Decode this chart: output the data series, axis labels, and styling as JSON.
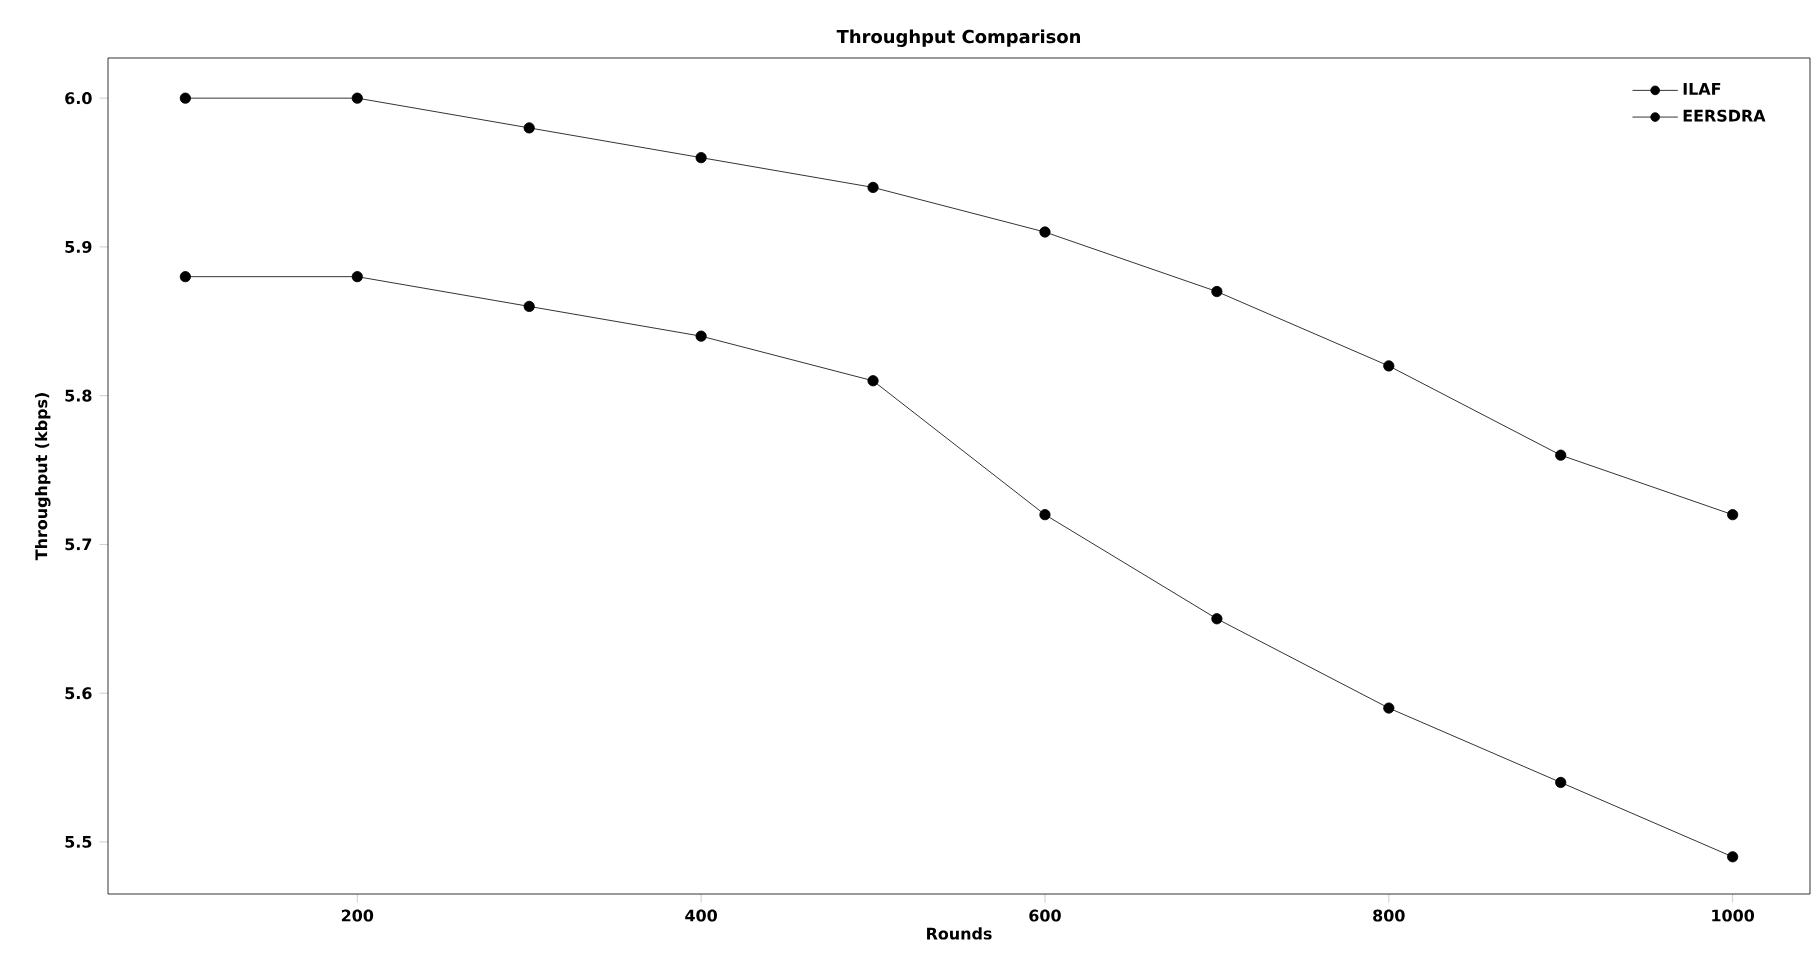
{
  "chart_data": {
    "type": "line",
    "title": "Throughput Comparison",
    "xlabel": "Rounds",
    "ylabel": "Throughput (kbps)",
    "x": [
      100,
      200,
      300,
      400,
      500,
      600,
      700,
      800,
      900,
      1000
    ],
    "series": [
      {
        "name": "ILAF",
        "color": "#000000",
        "values": [
          6.0,
          6.0,
          5.98,
          5.96,
          5.94,
          5.91,
          5.87,
          5.82,
          5.76,
          5.72
        ]
      },
      {
        "name": "EERSDRA",
        "color": "#000000",
        "values": [
          5.88,
          5.88,
          5.86,
          5.84,
          5.81,
          5.72,
          5.65,
          5.59,
          5.54,
          5.49
        ]
      }
    ],
    "xlim": [
      55,
      1045
    ],
    "xticks": [
      200,
      400,
      600,
      800,
      1000
    ],
    "ylim": [
      5.465,
      6.027
    ],
    "yticks": [
      5.5,
      5.6,
      5.7,
      5.8,
      5.9,
      {
        "value": 6.0,
        "label": "6.0"
      }
    ],
    "grid": false,
    "legend": "top right",
    "marker": "circle",
    "line_style": "solid"
  }
}
